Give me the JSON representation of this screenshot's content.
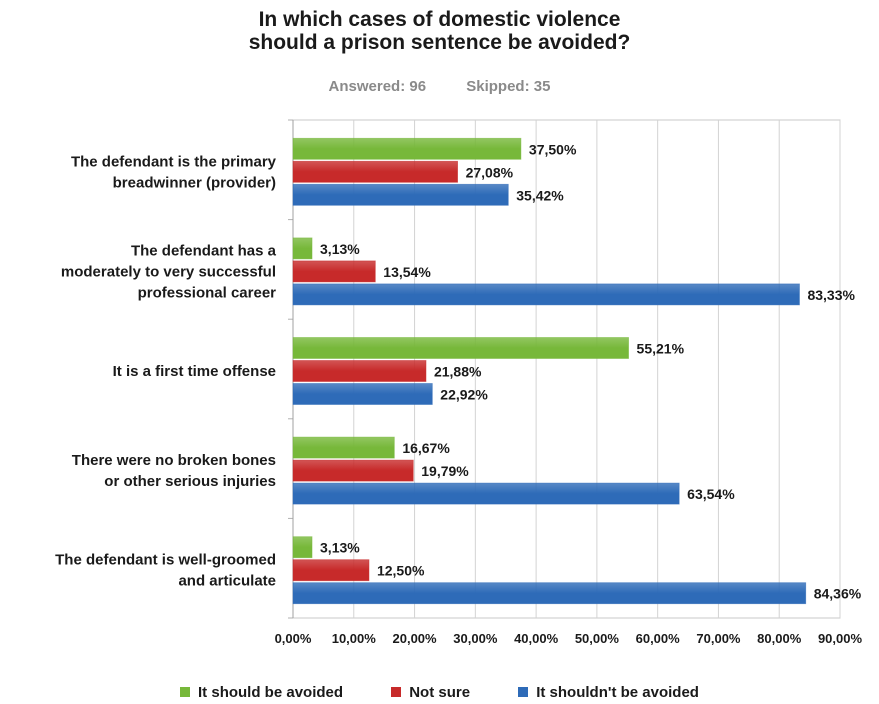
{
  "chart_data": {
    "type": "bar",
    "orientation": "horizontal",
    "title_lines": [
      "In which cases of domestic violence",
      "should a prison sentence be avoided?"
    ],
    "answered_label": "Answered: 96",
    "skipped_label": "Skipped: 35",
    "categories": [
      [
        "The defendant is the primary",
        "breadwinner (provider)"
      ],
      [
        "The defendant has a",
        "moderately to very successful",
        "professional career"
      ],
      [
        "It is a first time offense"
      ],
      [
        "There were no broken bones",
        "or other serious injuries"
      ],
      [
        "The defendant is well-groomed",
        "and articulate"
      ]
    ],
    "series": [
      {
        "name": "It should be avoided",
        "color": "#77b83a",
        "values": [
          37.5,
          3.13,
          55.21,
          16.67,
          3.13
        ],
        "labels": [
          "37,50%",
          "3,13%",
          "55,21%",
          "16,67%",
          "3,13%"
        ]
      },
      {
        "name": "Not sure",
        "color": "#c72a2a",
        "values": [
          27.08,
          13.54,
          21.88,
          19.79,
          12.5
        ],
        "labels": [
          "27,08%",
          "13,54%",
          "21,88%",
          "19,79%",
          "12,50%"
        ]
      },
      {
        "name": "It shouldn't be avoided",
        "color": "#2e6bb8",
        "values": [
          35.42,
          83.33,
          22.92,
          63.54,
          84.36
        ],
        "labels": [
          "35,42%",
          "83,33%",
          "22,92%",
          "63,54%",
          "84,36%"
        ]
      }
    ],
    "xlim": [
      0,
      90
    ],
    "xticks": [
      "0,00%",
      "10,00%",
      "20,00%",
      "30,00%",
      "40,00%",
      "50,00%",
      "60,00%",
      "70,00%",
      "80,00%",
      "90,00%"
    ],
    "grid": true,
    "legend_position": "bottom"
  }
}
